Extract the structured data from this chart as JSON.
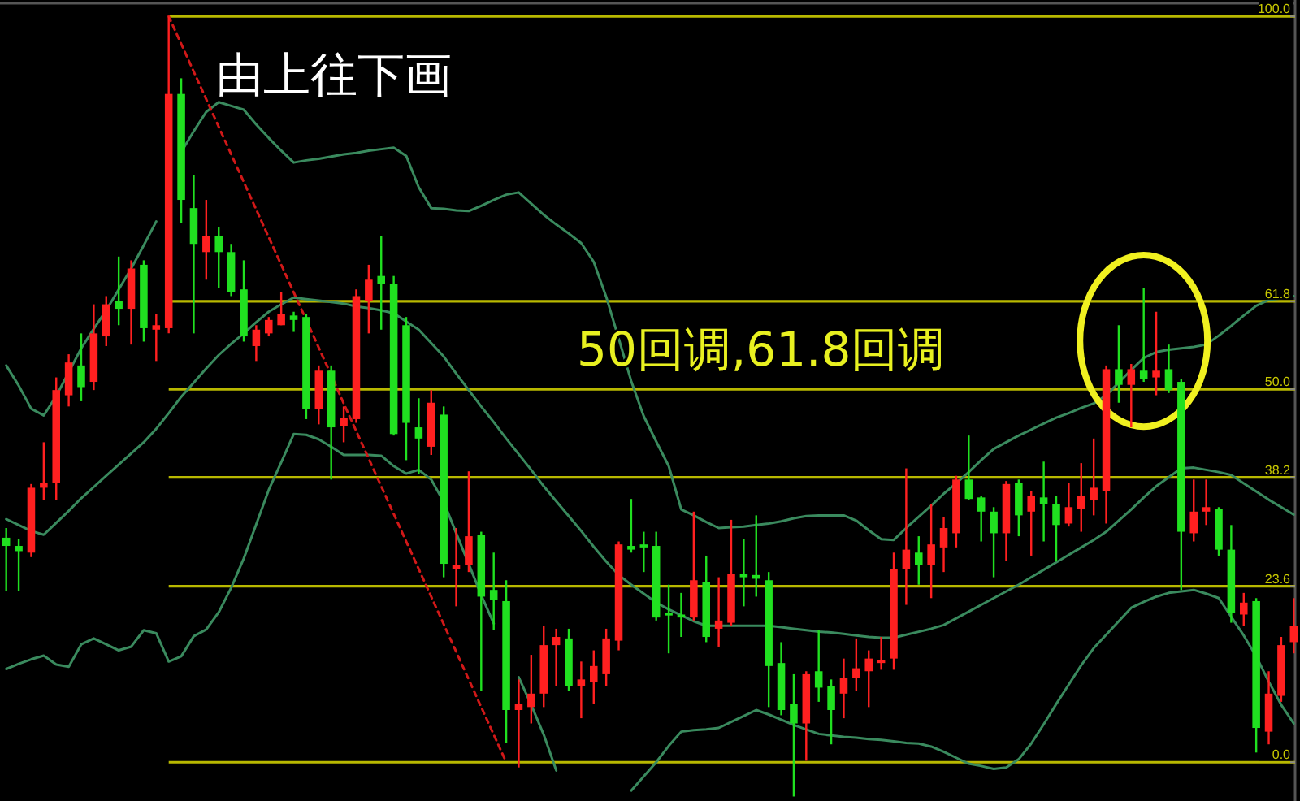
{
  "chart_data": {
    "type": "candlestick",
    "annotations": [
      "由上往下画",
      "50回调,61.8回调"
    ],
    "ylim": [
      -5.2,
      102.2
    ],
    "yticks": [
      {
        "value": 100,
        "label": "100.0"
      },
      61.8,
      {
        "value": 50,
        "label": "50.0"
      },
      38.2,
      23.6,
      {
        "value": 0,
        "label": "0.0"
      }
    ],
    "categories": [
      null,
      null,
      null,
      null,
      null,
      null,
      null,
      null,
      null,
      null,
      null,
      null,
      null,
      null,
      null,
      null,
      null,
      null,
      null,
      null,
      null,
      null,
      null,
      null,
      null,
      null,
      null,
      null,
      null,
      null,
      null,
      null,
      null,
      null,
      null,
      null,
      null,
      null,
      null,
      null,
      null,
      null,
      null,
      null,
      null,
      null,
      null,
      null,
      null,
      null,
      null,
      null,
      null,
      null,
      null,
      null,
      null,
      null,
      null,
      null,
      null,
      null,
      null,
      null,
      null,
      null,
      null,
      null,
      null,
      null,
      null,
      null,
      null,
      null,
      null,
      null,
      null,
      null,
      null,
      null,
      null,
      null,
      null,
      null,
      null,
      null,
      null,
      null,
      null,
      null,
      null,
      null,
      null,
      null,
      null,
      null,
      null,
      null,
      null,
      null,
      null,
      null,
      null,
      null
    ],
    "ohlc": [
      [
        30.1,
        31.4,
        22.9,
        29.0
      ],
      [
        29.0,
        29.9,
        22.9,
        28.3
      ],
      [
        28.1,
        37.3,
        27.5,
        36.8
      ],
      [
        36.8,
        42.9,
        35.1,
        37.5
      ],
      [
        37.5,
        51.6,
        35.1,
        49.9
      ],
      [
        49.2,
        54.7,
        47.7,
        53.6
      ],
      [
        53.2,
        57.5,
        48.4,
        50.3
      ],
      [
        51.0,
        61.4,
        49.9,
        57.5
      ],
      [
        57.1,
        62.5,
        55.8,
        61.4
      ],
      [
        61.9,
        67.8,
        58.6,
        60.8
      ],
      [
        60.8,
        67.3,
        56.0,
        66.2
      ],
      [
        66.7,
        67.3,
        56.4,
        58.2
      ],
      [
        58.0,
        60.1,
        53.8,
        58.6
      ],
      [
        58.2,
        100.0,
        57.5,
        89.6
      ],
      [
        89.6,
        91.7,
        72.3,
        75.4
      ],
      [
        74.3,
        78.7,
        57.5,
        69.5
      ],
      [
        68.4,
        75.4,
        64.7,
        70.6
      ],
      [
        70.6,
        71.7,
        63.6,
        68.4
      ],
      [
        68.4,
        69.5,
        62.5,
        63.0
      ],
      [
        63.4,
        67.3,
        56.4,
        57.1
      ],
      [
        55.8,
        58.6,
        53.8,
        58.0
      ],
      [
        57.5,
        59.7,
        57.1,
        59.3
      ],
      [
        58.6,
        63.0,
        58.6,
        60.1
      ],
      [
        59.9,
        60.4,
        57.7,
        59.3
      ],
      [
        59.7,
        60.1,
        46.0,
        47.3
      ],
      [
        47.3,
        53.2,
        45.3,
        52.5
      ],
      [
        52.5,
        53.2,
        37.9,
        44.9
      ],
      [
        45.1,
        47.7,
        42.9,
        46.2
      ],
      [
        46.0,
        63.4,
        45.5,
        62.5
      ],
      [
        61.9,
        66.7,
        57.5,
        64.7
      ],
      [
        65.2,
        70.6,
        58.0,
        64.1
      ],
      [
        64.1,
        65.2,
        43.8,
        44.0
      ],
      [
        58.6,
        59.7,
        40.5,
        45.5
      ],
      [
        44.9,
        48.8,
        38.6,
        43.4
      ],
      [
        42.3,
        49.9,
        41.2,
        48.2
      ],
      [
        46.6,
        47.7,
        24.8,
        26.6
      ],
      [
        25.9,
        31.4,
        20.9,
        26.4
      ],
      [
        26.4,
        39.0,
        25.5,
        30.3
      ],
      [
        30.5,
        30.9,
        9.6,
        22.2
      ],
      [
        23.1,
        28.1,
        17.7,
        21.8
      ],
      [
        21.6,
        24.4,
        2.6,
        7.0
      ],
      [
        7.0,
        11.1,
        -0.7,
        7.8
      ],
      [
        7.4,
        14.4,
        5.2,
        9.2
      ],
      [
        9.2,
        18.3,
        7.4,
        15.7
      ],
      [
        15.7,
        17.9,
        10.2,
        16.8
      ],
      [
        16.6,
        17.9,
        9.6,
        10.2
      ],
      [
        10.2,
        13.5,
        5.9,
        11.1
      ],
      [
        10.7,
        15.0,
        7.8,
        12.9
      ],
      [
        11.8,
        17.9,
        10.2,
        16.6
      ],
      [
        16.3,
        29.6,
        15.0,
        29.2
      ],
      [
        29.0,
        35.3,
        28.1,
        28.5
      ],
      [
        29.2,
        30.9,
        25.5,
        28.8
      ],
      [
        29.0,
        30.9,
        19.0,
        19.4
      ],
      [
        20.0,
        23.8,
        14.6,
        19.8
      ],
      [
        19.8,
        22.7,
        16.8,
        19.4
      ],
      [
        19.4,
        33.6,
        19.0,
        24.4
      ],
      [
        24.2,
        27.7,
        16.1,
        16.8
      ],
      [
        17.9,
        24.8,
        15.5,
        19.0
      ],
      [
        18.7,
        32.5,
        18.3,
        25.3
      ],
      [
        25.3,
        29.9,
        20.9,
        24.8
      ],
      [
        25.1,
        33.1,
        22.2,
        24.6
      ],
      [
        24.4,
        25.5,
        7.4,
        12.9
      ],
      [
        13.3,
        16.1,
        6.3,
        7.0
      ],
      [
        7.8,
        11.8,
        -4.6,
        5.2
      ],
      [
        5.2,
        12.2,
        0.2,
        11.8
      ],
      [
        12.2,
        17.7,
        8.1,
        10.0
      ],
      [
        10.2,
        11.1,
        2.4,
        7.0
      ],
      [
        9.2,
        13.9,
        5.9,
        11.3
      ],
      [
        11.3,
        16.6,
        9.6,
        12.6
      ],
      [
        12.2,
        15.0,
        7.4,
        13.9
      ],
      [
        13.3,
        16.8,
        12.4,
        13.7
      ],
      [
        13.9,
        28.1,
        12.4,
        25.9
      ],
      [
        25.9,
        39.4,
        21.1,
        28.5
      ],
      [
        28.1,
        30.3,
        23.8,
        26.4
      ],
      [
        26.4,
        34.6,
        22.0,
        29.2
      ],
      [
        28.8,
        32.9,
        25.5,
        31.4
      ],
      [
        30.7,
        38.4,
        28.8,
        37.9
      ],
      [
        37.9,
        43.8,
        35.1,
        35.3
      ],
      [
        35.5,
        35.7,
        29.6,
        33.6
      ],
      [
        33.6,
        34.2,
        24.8,
        30.7
      ],
      [
        30.7,
        37.7,
        27.0,
        37.3
      ],
      [
        37.5,
        37.9,
        30.3,
        33.1
      ],
      [
        33.6,
        36.4,
        27.7,
        35.7
      ],
      [
        35.5,
        40.3,
        29.6,
        34.6
      ],
      [
        34.6,
        35.7,
        27.0,
        31.8
      ],
      [
        32.0,
        37.5,
        31.6,
        34.2
      ],
      [
        34.0,
        40.1,
        30.9,
        35.7
      ],
      [
        35.1,
        43.4,
        33.1,
        36.8
      ],
      [
        36.4,
        53.2,
        32.0,
        52.7
      ],
      [
        52.7,
        58.6,
        48.2,
        50.6
      ],
      [
        50.6,
        53.4,
        44.9,
        52.7
      ],
      [
        52.5,
        63.6,
        51.0,
        51.4
      ],
      [
        51.6,
        60.4,
        49.2,
        52.5
      ],
      [
        52.7,
        56.0,
        49.5,
        49.9
      ],
      [
        51.0,
        51.4,
        23.1,
        30.9
      ],
      [
        30.7,
        37.9,
        29.6,
        33.6
      ],
      [
        33.6,
        37.9,
        31.8,
        34.2
      ],
      [
        34.0,
        34.2,
        27.7,
        28.5
      ],
      [
        28.5,
        31.8,
        18.7,
        20.0
      ],
      [
        19.8,
        22.7,
        18.3,
        21.4
      ],
      [
        21.6,
        22.0,
        1.3,
        4.6
      ],
      [
        4.1,
        12.2,
        2.4,
        9.2
      ],
      [
        8.9,
        16.8,
        8.1,
        15.7
      ],
      [
        16.1,
        22.0,
        14.6,
        18.3
      ]
    ],
    "colors": [
      "#20e020",
      "#20e020",
      "#ff2020",
      "#ff2020",
      "#ff2020",
      "#ff2020",
      "#20e020",
      "#ff2020",
      "#ff2020",
      "#20e020",
      "#ff2020",
      "#20e020",
      "#ff2020",
      "#ff2020",
      "#20e020",
      "#20e020",
      "#ff2020",
      "#20e020",
      "#20e020",
      "#20e020",
      "#ff2020",
      "#ff2020",
      "#ff2020",
      "#20e020",
      "#20e020",
      "#ff2020",
      "#20e020",
      "#ff2020",
      "#ff2020",
      "#ff2020",
      "#20e020",
      "#20e020",
      "#20e020",
      "#20e020",
      "#ff2020",
      "#20e020",
      "#ff2020",
      "#ff2020",
      "#20e020",
      "#20e020",
      "#20e020",
      "#ff2020",
      "#ff2020",
      "#ff2020",
      "#ff2020",
      "#20e020",
      "#ff2020",
      "#ff2020",
      "#ff2020",
      "#ff2020",
      "#20e020",
      "#20e020",
      "#20e020",
      "#20e020",
      "#20e020",
      "#ff2020",
      "#20e020",
      "#ff2020",
      "#ff2020",
      "#20e020",
      "#20e020",
      "#20e020",
      "#20e020",
      "#20e020",
      "#ff2020",
      "#20e020",
      "#20e020",
      "#ff2020",
      "#ff2020",
      "#ff2020",
      "#ff2020",
      "#ff2020",
      "#ff2020",
      "#20e020",
      "#ff2020",
      "#ff2020",
      "#ff2020",
      "#20e020",
      "#20e020",
      "#20e020",
      "#ff2020",
      "#20e020",
      "#ff2020",
      "#20e020",
      "#20e020",
      "#ff2020",
      "#ff2020",
      "#ff2020",
      "#ff2020",
      "#20e020",
      "#ff2020",
      "#20e020",
      "#ff2020",
      "#20e020",
      "#20e020",
      "#ff2020",
      "#ff2020",
      "#20e020",
      "#20e020",
      "#ff2020",
      "#20e020",
      "#ff2020",
      "#ff2020",
      "#ff2020"
    ],
    "series": [
      {
        "type": "line",
        "color": "#3a8a5e",
        "values": [
          53.2,
          50.5,
          47.4,
          46.5,
          49.1,
          52.3,
          55.5,
          58.1,
          60.6,
          63.4,
          66.2,
          69.3,
          72.5,
          null,
          81.8,
          84.6,
          87.2,
          88.5,
          88.0,
          87.5,
          85.5,
          83.7,
          82.0,
          80.4,
          80.7,
          80.9,
          81.2,
          81.5,
          81.7,
          82.0,
          82.2,
          82.4,
          81.3,
          77.1,
          74.3,
          74.2,
          74.0,
          73.9,
          74.6,
          75.4,
          76.1,
          76.4,
          74.9,
          73.4,
          72.1,
          70.9,
          69.6,
          67.1,
          62.4,
          56.8,
          51.1,
          46.4,
          43.0,
          39.7,
          33.9,
          33.1,
          32.2,
          31.4,
          31.5,
          31.6,
          31.8,
          32.0,
          32.3,
          32.7,
          33.0,
          33.1,
          33.1,
          33.1,
          32.4,
          31.1,
          29.9,
          29.8,
          31.4,
          32.9,
          34.4,
          36.0,
          37.4,
          38.9,
          40.5,
          42.0,
          42.9,
          43.8,
          44.6,
          45.4,
          46.2,
          46.8,
          47.5,
          48.1,
          49.2,
          50.9,
          52.6,
          54.2,
          55.0,
          55.3,
          55.5,
          55.7,
          56.0,
          57.2,
          58.5,
          59.9,
          61.2,
          62.0,
          62.2,
          62.5
        ]
      },
      {
        "type": "line",
        "color": "#3a8a5e",
        "values": [
          32.6,
          31.8,
          31.0,
          30.5,
          32.1,
          33.7,
          35.4,
          36.9,
          38.4,
          39.9,
          41.4,
          42.9,
          44.7,
          46.8,
          49.0,
          50.9,
          52.8,
          54.6,
          56.1,
          57.5,
          59.0,
          60.4,
          61.4,
          62.3,
          62.1,
          61.9,
          61.7,
          61.5,
          61.1,
          60.9,
          60.6,
          60.2,
          59.1,
          58.0,
          56.2,
          54.4,
          52.1,
          49.9,
          47.7,
          45.6,
          43.4,
          41.3,
          39.2,
          37.0,
          35.0,
          33.0,
          31.0,
          28.9,
          26.9,
          25.1,
          23.8,
          22.6,
          21.4,
          20.5,
          19.7,
          18.9,
          18.3,
          18.3,
          18.3,
          18.3,
          18.3,
          18.3,
          18.1,
          17.9,
          17.7,
          17.5,
          17.4,
          17.2,
          17.0,
          16.8,
          16.7,
          16.7,
          17.1,
          17.5,
          17.9,
          18.4,
          19.3,
          20.2,
          21.1,
          22.0,
          22.9,
          23.8,
          24.8,
          25.8,
          26.8,
          27.8,
          28.8,
          29.8,
          30.9,
          32.4,
          33.9,
          35.5,
          37.0,
          38.2,
          39.4,
          39.5,
          39.2,
          38.9,
          38.5,
          37.4,
          36.3,
          35.2,
          34.2,
          33.2
        ]
      },
      {
        "type": "line",
        "color": "#3a8a5e",
        "values": [
          12.5,
          13.2,
          13.8,
          14.3,
          13.1,
          12.8,
          15.8,
          16.6,
          15.8,
          15.0,
          15.5,
          17.7,
          17.3,
          13.5,
          14.2,
          16.9,
          17.8,
          20.1,
          23.4,
          27.3,
          31.9,
          36.5,
          40.2,
          44.0,
          43.9,
          43.3,
          42.3,
          41.2,
          41.2,
          41.2,
          41.1,
          39.7,
          38.7,
          39.2,
          37.9,
          34.9,
          30.7,
          26.6,
          22.4,
          18.6,
          null,
          11.4,
          7.7,
          3.7,
          -1.1,
          null,
          null,
          null,
          null,
          null,
          -3.8,
          -1.9,
          0.0,
          2.2,
          4.1,
          4.3,
          4.4,
          4.6,
          5.4,
          6.2,
          7.0,
          6.4,
          5.7,
          5.0,
          4.4,
          3.8,
          3.6,
          3.4,
          3.3,
          3.1,
          3.0,
          2.8,
          2.6,
          2.5,
          2.1,
          1.4,
          0.6,
          -0.2,
          -0.5,
          -0.9,
          -0.7,
          0.4,
          2.5,
          5.1,
          7.8,
          10.4,
          13.0,
          15.3,
          17.1,
          18.9,
          20.7,
          21.5,
          22.2,
          22.7,
          22.9,
          23.1,
          22.6,
          22.0,
          19.5,
          17.0,
          14.2,
          10.8,
          7.7,
          5.2
        ]
      },
      {
        "type": "line",
        "color": "#d01818",
        "line_style": "dashed",
        "values": [
          null,
          null,
          null,
          null,
          null,
          null,
          null,
          null,
          null,
          null,
          null,
          null,
          null,
          100,
          96.3,
          92.6,
          88.9,
          85.2,
          81.5,
          77.8,
          74.1,
          70.4,
          66.7,
          63.0,
          59.3,
          55.6,
          51.9,
          48.1,
          44.4,
          40.7,
          37.0,
          33.3,
          29.6,
          25.9,
          22.2,
          18.5,
          14.8,
          11.1,
          7.4,
          3.7,
          0,
          null,
          null,
          null,
          null,
          null,
          null,
          null,
          null,
          null,
          null,
          null,
          null,
          null,
          null,
          null,
          null,
          null,
          null,
          null,
          null,
          null,
          null,
          null,
          null,
          null,
          null,
          null,
          null,
          null,
          null,
          null,
          null,
          null,
          null,
          null,
          null,
          null,
          null,
          null,
          null,
          null,
          null,
          null,
          null,
          null,
          null,
          null,
          null,
          null,
          null,
          null,
          null,
          null,
          null,
          null,
          null,
          null,
          null,
          null,
          null,
          null,
          null,
          null
        ]
      }
    ],
    "ref_lines": [
      {
        "axis": "y",
        "value": 100,
        "color": "#b8b800"
      },
      {
        "axis": "y",
        "value": 61.8,
        "color": "#b8b800"
      },
      {
        "axis": "y",
        "value": 50,
        "color": "#b8b800"
      },
      {
        "axis": "y",
        "value": 38.2,
        "color": "#b8b800"
      },
      {
        "axis": "y",
        "value": 23.6,
        "color": "#b8b800"
      },
      {
        "axis": "y",
        "value": 0,
        "color": "#b8b800"
      }
    ]
  }
}
